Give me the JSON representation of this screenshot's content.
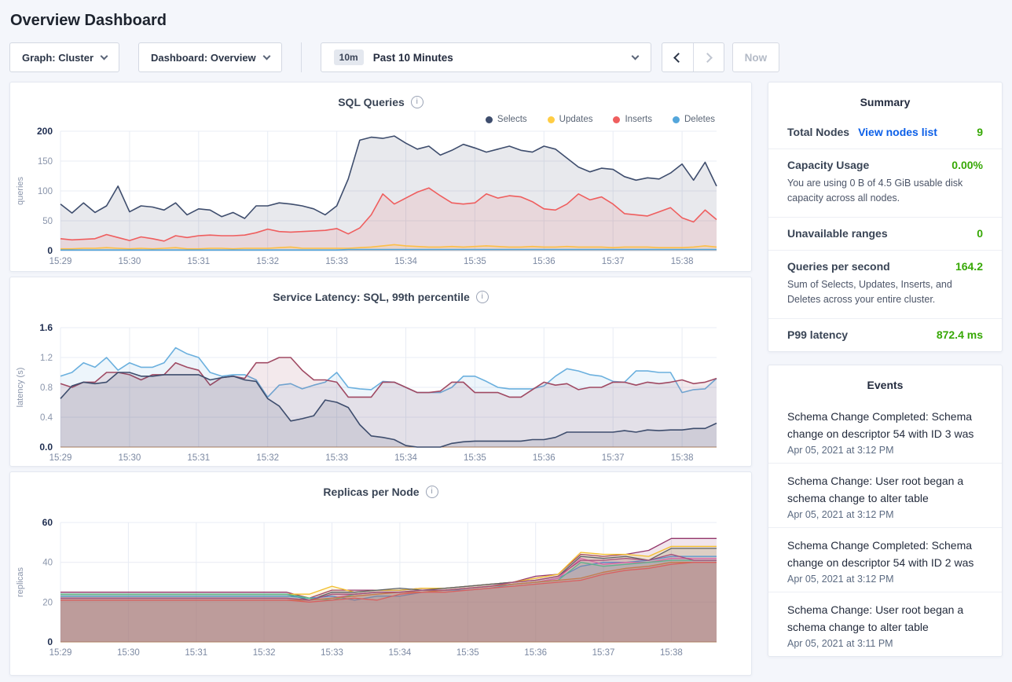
{
  "page": {
    "title": "Overview Dashboard"
  },
  "colors": {
    "link_blue": "#0b5fe8",
    "positive_green": "#37a806",
    "heading": "#394455"
  },
  "toolbar": {
    "graph_selector": "Graph: Cluster",
    "dashboard_selector": "Dashboard: Overview",
    "time_range_badge": "10m",
    "time_range_label": "Past 10 Minutes",
    "now_button": "Now"
  },
  "summary": {
    "title": "Summary",
    "rows": [
      {
        "label": "Total Nodes",
        "link": "View nodes list",
        "value": "9"
      },
      {
        "label": "Capacity Usage",
        "value": "0.00%",
        "description": "You are using 0 B of 4.5 GiB usable disk capacity across all nodes."
      },
      {
        "label": "Unavailable ranges",
        "value": "0"
      },
      {
        "label": "Queries per second",
        "value": "164.2",
        "description": "Sum of Selects, Updates, Inserts, and Deletes across your entire cluster."
      },
      {
        "label": "P99 latency",
        "value": "872.4 ms"
      }
    ]
  },
  "events": {
    "title": "Events",
    "items": [
      {
        "text": "Schema Change Completed: Schema change on descriptor 54 with ID 3 was",
        "timestamp": "Apr 05, 2021 at 3:12 PM"
      },
      {
        "text": "Schema Change: User root began a schema change to alter table",
        "timestamp": "Apr 05, 2021 at 3:12 PM"
      },
      {
        "text": "Schema Change Completed: Schema change on descriptor 54 with ID 2 was",
        "timestamp": "Apr 05, 2021 at 3:12 PM"
      },
      {
        "text": "Schema Change: User root began a schema change to alter table",
        "timestamp": "Apr 05, 2021 at 3:11 PM"
      }
    ]
  },
  "chart_data": [
    {
      "type": "line",
      "title": "SQL Queries",
      "ylabel": "queries",
      "ylim": [
        0,
        200
      ],
      "yticks": [
        0,
        50,
        100,
        150,
        200
      ],
      "ytick_labels": [
        "0",
        "50",
        "100",
        "150",
        "200"
      ],
      "x_step_seconds": 10,
      "xtick_seconds": [
        0,
        60,
        120,
        180,
        240,
        300,
        360,
        420,
        480,
        540
      ],
      "xtick_labels": [
        "15:29",
        "15:30",
        "15:31",
        "15:32",
        "15:33",
        "15:34",
        "15:35",
        "15:36",
        "15:37",
        "15:38"
      ],
      "grid": true,
      "legend_position": "top-right",
      "baseline_color": "#c3cedd",
      "fill_opacity": 0.12,
      "line_width": 1.6,
      "series": [
        {
          "name": "Selects",
          "color": "#3e4d6d",
          "values": [
            78,
            63,
            80,
            64,
            75,
            108,
            65,
            75,
            73,
            68,
            80,
            60,
            70,
            68,
            57,
            64,
            54,
            75,
            75,
            80,
            78,
            75,
            70,
            60,
            75,
            120,
            185,
            190,
            188,
            192,
            180,
            170,
            175,
            160,
            168,
            178,
            172,
            165,
            170,
            175,
            168,
            165,
            175,
            170,
            155,
            140,
            132,
            138,
            136,
            124,
            118,
            122,
            120,
            130,
            145,
            118,
            148,
            108
          ]
        },
        {
          "name": "Updates",
          "color": "#ffcd44",
          "values": [
            3,
            3,
            4,
            4,
            5,
            4,
            3,
            4,
            3,
            4,
            5,
            3,
            3,
            4,
            4,
            3,
            4,
            4,
            4,
            5,
            6,
            4,
            4,
            4,
            4,
            4,
            5,
            6,
            8,
            10,
            8,
            7,
            6,
            6,
            7,
            6,
            7,
            8,
            7,
            6,
            6,
            7,
            6,
            6,
            7,
            6,
            6,
            6,
            5,
            6,
            6,
            6,
            5,
            5,
            5,
            6,
            8,
            6
          ]
        },
        {
          "name": "Inserts",
          "color": "#ef5e5e",
          "values": [
            20,
            18,
            19,
            20,
            27,
            22,
            17,
            23,
            20,
            16,
            25,
            22,
            25,
            26,
            25,
            25,
            26,
            30,
            36,
            32,
            31,
            32,
            33,
            34,
            37,
            28,
            38,
            60,
            95,
            78,
            88,
            98,
            105,
            92,
            80,
            78,
            80,
            95,
            88,
            92,
            90,
            82,
            70,
            68,
            78,
            95,
            85,
            90,
            78,
            62,
            60,
            58,
            65,
            72,
            55,
            48,
            68,
            52
          ]
        },
        {
          "name": "Deletes",
          "color": "#53a6db",
          "values": [
            1,
            1,
            1,
            1,
            1,
            1,
            1,
            1,
            1,
            1,
            1,
            1,
            1,
            1,
            1,
            1,
            1,
            1,
            1,
            1,
            1,
            1,
            1,
            1,
            1,
            2,
            2,
            2,
            2,
            2,
            2,
            2,
            2,
            2,
            2,
            2,
            2,
            2,
            2,
            2,
            2,
            2,
            2,
            2,
            2,
            2,
            2,
            2,
            2,
            2,
            2,
            2,
            2,
            2,
            2,
            2,
            2,
            2
          ]
        }
      ]
    },
    {
      "type": "line",
      "title": "Service Latency: SQL, 99th percentile",
      "ylabel": "latency (s)",
      "ylim": [
        0,
        1.6
      ],
      "yticks": [
        0,
        0.4,
        0.8,
        1.2,
        1.6
      ],
      "ytick_labels": [
        "0.0",
        "0.4",
        "0.8",
        "1.2",
        "1.6"
      ],
      "x_step_seconds": 10,
      "xtick_seconds": [
        0,
        60,
        120,
        180,
        240,
        300,
        360,
        420,
        480,
        540
      ],
      "xtick_labels": [
        "15:29",
        "15:30",
        "15:31",
        "15:32",
        "15:33",
        "15:34",
        "15:35",
        "15:36",
        "15:37",
        "15:38"
      ],
      "grid": true,
      "legend_position": "none",
      "baseline_color": "#b08057",
      "fill_opacity": 0.12,
      "line_width": 1.6,
      "series": [
        {
          "name": "",
          "color": "#6bb0de",
          "values": [
            0.95,
            1.0,
            1.13,
            1.07,
            1.2,
            1.03,
            1.13,
            1.07,
            1.07,
            1.13,
            1.33,
            1.25,
            1.2,
            1.0,
            0.95,
            0.97,
            0.97,
            0.9,
            0.67,
            0.83,
            0.85,
            0.78,
            0.83,
            0.87,
            1.0,
            0.8,
            0.78,
            0.77,
            0.88,
            0.87,
            0.8,
            0.73,
            0.73,
            0.73,
            0.8,
            0.95,
            0.95,
            0.88,
            0.8,
            0.78,
            0.78,
            0.78,
            0.82,
            0.95,
            1.05,
            1.02,
            0.97,
            0.95,
            0.88,
            0.87,
            1.02,
            1.02,
            1.0,
            1.0,
            0.73,
            0.77,
            0.78,
            0.92
          ]
        },
        {
          "name": "",
          "color": "#a04a63",
          "values": [
            0.85,
            0.8,
            0.87,
            0.87,
            1.0,
            1.0,
            0.97,
            0.9,
            0.97,
            0.97,
            1.13,
            1.07,
            1.03,
            0.83,
            0.93,
            0.95,
            0.92,
            1.13,
            1.13,
            1.2,
            1.2,
            1.03,
            0.9,
            0.9,
            0.87,
            0.67,
            0.67,
            0.67,
            0.87,
            0.87,
            0.8,
            0.73,
            0.73,
            0.75,
            0.87,
            0.87,
            0.73,
            0.73,
            0.73,
            0.67,
            0.67,
            0.77,
            0.87,
            0.83,
            0.85,
            0.77,
            0.8,
            0.8,
            0.87,
            0.87,
            0.83,
            0.87,
            0.85,
            0.87,
            0.9,
            0.85,
            0.87,
            0.92
          ]
        },
        {
          "name": "",
          "color": "#3e4d6d",
          "values": [
            0.65,
            0.82,
            0.87,
            0.85,
            0.87,
            1.0,
            1.0,
            0.95,
            0.95,
            0.97,
            0.97,
            0.97,
            0.97,
            0.9,
            0.93,
            0.95,
            0.9,
            0.88,
            0.65,
            0.55,
            0.35,
            0.38,
            0.42,
            0.63,
            0.6,
            0.53,
            0.3,
            0.15,
            0.13,
            0.1,
            0.02,
            0.0,
            0.0,
            0.0,
            0.05,
            0.07,
            0.08,
            0.08,
            0.08,
            0.08,
            0.08,
            0.1,
            0.1,
            0.13,
            0.2,
            0.2,
            0.2,
            0.2,
            0.2,
            0.22,
            0.2,
            0.23,
            0.22,
            0.23,
            0.23,
            0.25,
            0.25,
            0.32
          ]
        }
      ]
    },
    {
      "type": "line",
      "title": "Replicas per Node",
      "ylabel": "replicas",
      "ylim": [
        0,
        60
      ],
      "yticks": [
        0,
        20,
        40,
        60
      ],
      "ytick_labels": [
        "0",
        "20",
        "40",
        "60"
      ],
      "x_step_seconds": 20,
      "xtick_seconds": [
        0,
        60,
        120,
        180,
        240,
        300,
        360,
        420,
        480,
        540
      ],
      "xtick_labels": [
        "15:29",
        "15:30",
        "15:31",
        "15:32",
        "15:33",
        "15:34",
        "15:35",
        "15:36",
        "15:37",
        "15:38"
      ],
      "grid": true,
      "legend_position": "none",
      "baseline_color": "#b08057",
      "fill_opacity": 0.13,
      "line_width": 1.3,
      "series": [
        {
          "name": "",
          "color": "#93366b",
          "values": [
            25,
            25,
            25,
            25,
            25,
            25,
            25,
            25,
            25,
            25,
            25,
            22,
            26,
            26,
            26,
            26,
            27,
            27,
            28,
            29,
            30,
            33,
            34,
            44,
            43,
            44,
            46,
            52,
            52,
            52
          ]
        },
        {
          "name": "",
          "color": "#f2be2c",
          "values": [
            24,
            24,
            24,
            24,
            24,
            24,
            24,
            24,
            24,
            24,
            24,
            24,
            28,
            25,
            26,
            26,
            27,
            27,
            28,
            29,
            30,
            32,
            34,
            45,
            44,
            44,
            43,
            48,
            48,
            48
          ]
        },
        {
          "name": "",
          "color": "#5c6066",
          "values": [
            24,
            24,
            24,
            24,
            24,
            24,
            24,
            24,
            24,
            24,
            24,
            21,
            25,
            25,
            26,
            27,
            26,
            27,
            28,
            29,
            30,
            31,
            33,
            43,
            42,
            43,
            41,
            47,
            47,
            47
          ]
        },
        {
          "name": "",
          "color": "#5294cf",
          "values": [
            23,
            23,
            23,
            23,
            23,
            23,
            23,
            23,
            23,
            23,
            23,
            22,
            23,
            21,
            23,
            23,
            25,
            26,
            26,
            27,
            29,
            30,
            32,
            38,
            40,
            40,
            41,
            43,
            43,
            43
          ]
        },
        {
          "name": "",
          "color": "#e06ca8",
          "values": [
            22,
            22,
            22,
            22,
            22,
            22,
            22,
            22,
            22,
            22,
            22,
            21,
            22,
            24,
            25,
            25,
            26,
            26,
            27,
            28,
            29,
            30,
            32,
            42,
            39,
            40,
            40,
            42,
            42,
            42
          ]
        },
        {
          "name": "",
          "color": "#55c08e",
          "values": [
            24,
            24,
            24,
            24,
            24,
            24,
            24,
            24,
            24,
            24,
            24,
            22,
            21,
            24,
            25,
            25,
            26,
            26,
            27,
            28,
            29,
            30,
            31,
            40,
            38,
            39,
            40,
            41,
            41,
            41
          ]
        },
        {
          "name": "",
          "color": "#c98145",
          "values": [
            21,
            21,
            21,
            21,
            21,
            21,
            21,
            21,
            21,
            21,
            21,
            21,
            22,
            23,
            24,
            25,
            25,
            26,
            27,
            28,
            29,
            30,
            31,
            32,
            35,
            37,
            38,
            40,
            40,
            40
          ]
        },
        {
          "name": "",
          "color": "#e0635c",
          "values": [
            21,
            21,
            21,
            21,
            21,
            21,
            21,
            21,
            21,
            21,
            21,
            20,
            21,
            22,
            21,
            24,
            25,
            25,
            26,
            27,
            28,
            29,
            30,
            31,
            34,
            36,
            37,
            39,
            40,
            40
          ]
        },
        {
          "name": "",
          "color": "#a64d79",
          "values": [
            22,
            22,
            22,
            22,
            22,
            22,
            22,
            22,
            22,
            22,
            22,
            21,
            24,
            24,
            25,
            25,
            26,
            26,
            27,
            28,
            30,
            31,
            33,
            41,
            41,
            42,
            41,
            44,
            41,
            41
          ]
        }
      ]
    }
  ]
}
